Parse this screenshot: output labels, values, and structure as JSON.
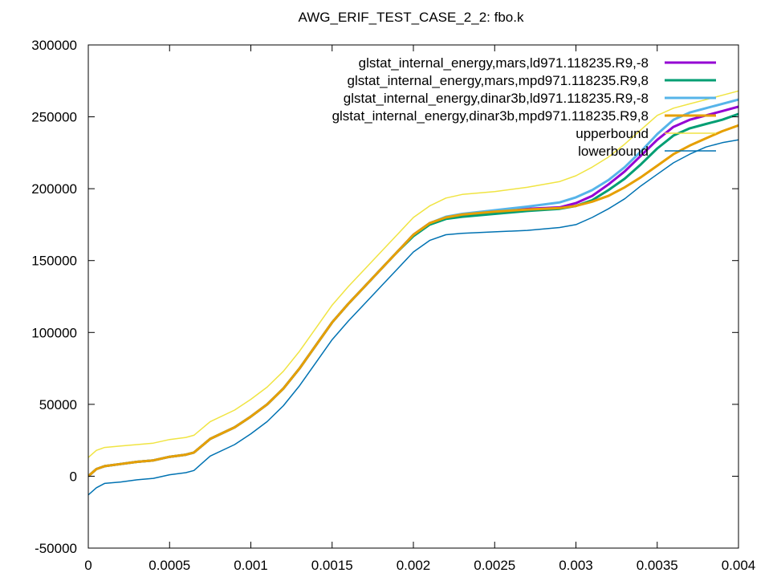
{
  "chart_data": {
    "type": "line",
    "title": "AWG_ERIF_TEST_CASE_2_2: fbo.k",
    "xlabel": "",
    "ylabel": "",
    "xlim": [
      0,
      0.004
    ],
    "ylim": [
      -50000,
      300000
    ],
    "xticks": [
      {
        "value": 0,
        "label": "0"
      },
      {
        "value": 0.0005,
        "label": "0.0005"
      },
      {
        "value": 0.001,
        "label": "0.001"
      },
      {
        "value": 0.0015,
        "label": "0.0015"
      },
      {
        "value": 0.002,
        "label": "0.002"
      },
      {
        "value": 0.0025,
        "label": "0.0025"
      },
      {
        "value": 0.003,
        "label": "0.003"
      },
      {
        "value": 0.0035,
        "label": "0.0035"
      },
      {
        "value": 0.004,
        "label": "0.004"
      }
    ],
    "yticks": [
      {
        "value": -50000,
        "label": "-50000"
      },
      {
        "value": 0,
        "label": "0"
      },
      {
        "value": 50000,
        "label": "50000"
      },
      {
        "value": 100000,
        "label": "100000"
      },
      {
        "value": 150000,
        "label": "150000"
      },
      {
        "value": 200000,
        "label": "200000"
      },
      {
        "value": 250000,
        "label": "250000"
      },
      {
        "value": 300000,
        "label": "300000"
      }
    ],
    "grid": false,
    "legend_position": "top-right",
    "series": [
      {
        "name": "glstat_internal_energy,mars,ld971.118235.R9,-8",
        "color": "#9400d3",
        "width": 3,
        "x": [
          0,
          5e-05,
          0.0001,
          0.0002,
          0.0003,
          0.0004,
          0.0005,
          0.0006,
          0.00065,
          0.00075,
          0.0009,
          0.001,
          0.0011,
          0.0012,
          0.0013,
          0.0014,
          0.0015,
          0.0016,
          0.0017,
          0.0018,
          0.0019,
          0.002,
          0.0021,
          0.0022,
          0.0023,
          0.0025,
          0.0027,
          0.0029,
          0.003,
          0.0031,
          0.0032,
          0.0033,
          0.0034,
          0.0035,
          0.0036,
          0.0037,
          0.0038,
          0.0039,
          0.004
        ],
        "y": [
          0,
          5000,
          7000,
          8500,
          10000,
          11000,
          13500,
          15000,
          16500,
          26000,
          34000,
          41500,
          50000,
          61000,
          75000,
          91000,
          107000,
          120000,
          132000,
          144000,
          156000,
          168000,
          176000,
          180000,
          182000,
          184000,
          186000,
          187000,
          190000,
          195000,
          203000,
          212000,
          223000,
          234000,
          243000,
          248000,
          251000,
          254000,
          257000
        ]
      },
      {
        "name": "glstat_internal_energy,mars,mpd971.118235.R9,8",
        "color": "#009e73",
        "width": 3,
        "x": [
          0,
          5e-05,
          0.0001,
          0.0002,
          0.0003,
          0.0004,
          0.0005,
          0.0006,
          0.00065,
          0.00075,
          0.0009,
          0.001,
          0.0011,
          0.0012,
          0.0013,
          0.0014,
          0.0015,
          0.0016,
          0.0017,
          0.0018,
          0.0019,
          0.002,
          0.0021,
          0.0022,
          0.0023,
          0.0025,
          0.0027,
          0.0029,
          0.003,
          0.0031,
          0.0032,
          0.0033,
          0.0034,
          0.0035,
          0.0036,
          0.0037,
          0.0038,
          0.0039,
          0.004
        ],
        "y": [
          0,
          5000,
          7000,
          8500,
          10000,
          11000,
          13500,
          15000,
          16500,
          26000,
          34000,
          41500,
          50000,
          61000,
          75000,
          91000,
          107000,
          120000,
          132000,
          144000,
          156000,
          167000,
          175000,
          179000,
          180500,
          182500,
          184500,
          186000,
          188000,
          192000,
          199000,
          207000,
          217000,
          228000,
          237000,
          242000,
          245000,
          248000,
          252000
        ]
      },
      {
        "name": "glstat_internal_energy,dinar3b,ld971.118235.R9,-8",
        "color": "#56b4e9",
        "width": 3,
        "x": [
          0,
          5e-05,
          0.0001,
          0.0002,
          0.0003,
          0.0004,
          0.0005,
          0.0006,
          0.00065,
          0.00075,
          0.0009,
          0.001,
          0.0011,
          0.0012,
          0.0013,
          0.0014,
          0.0015,
          0.0016,
          0.0017,
          0.0018,
          0.0019,
          0.002,
          0.0021,
          0.0022,
          0.0023,
          0.0025,
          0.0027,
          0.0029,
          0.003,
          0.0031,
          0.0032,
          0.0033,
          0.0034,
          0.0035,
          0.0036,
          0.0037,
          0.0038,
          0.0039,
          0.004
        ],
        "y": [
          0,
          5000,
          7000,
          8500,
          10000,
          11000,
          13500,
          15000,
          16500,
          26000,
          34000,
          41500,
          50000,
          61000,
          75000,
          91000,
          107000,
          120000,
          132000,
          144000,
          156000,
          168000,
          176000,
          180500,
          182500,
          185000,
          187500,
          190500,
          194000,
          199000,
          206000,
          215000,
          226000,
          238000,
          248000,
          253000,
          256000,
          259000,
          262000
        ]
      },
      {
        "name": "glstat_internal_energy,dinar3b,mpd971.118235.R9,8",
        "color": "#e69f00",
        "width": 3,
        "x": [
          0,
          5e-05,
          0.0001,
          0.0002,
          0.0003,
          0.0004,
          0.0005,
          0.0006,
          0.00065,
          0.00075,
          0.0009,
          0.001,
          0.0011,
          0.0012,
          0.0013,
          0.0014,
          0.0015,
          0.0016,
          0.0017,
          0.0018,
          0.0019,
          0.002,
          0.0021,
          0.0022,
          0.0023,
          0.0025,
          0.0027,
          0.0029,
          0.003,
          0.0031,
          0.0032,
          0.0033,
          0.0034,
          0.0035,
          0.0036,
          0.0037,
          0.0038,
          0.0039,
          0.004
        ],
        "y": [
          0,
          5000,
          7000,
          8500,
          10000,
          11000,
          13500,
          15000,
          16500,
          26000,
          34000,
          41500,
          50000,
          61000,
          75000,
          91000,
          107000,
          120000,
          132000,
          144000,
          156000,
          168000,
          176000,
          180000,
          182000,
          184000,
          185500,
          186500,
          188000,
          191000,
          195000,
          201000,
          208000,
          216000,
          224000,
          230000,
          235000,
          240000,
          244000
        ]
      },
      {
        "name": "upperbound",
        "color": "#f0e442",
        "width": 1.5,
        "x": [
          0,
          5e-05,
          0.0001,
          0.0002,
          0.0003,
          0.0004,
          0.0005,
          0.0006,
          0.00065,
          0.00075,
          0.0009,
          0.001,
          0.0011,
          0.0012,
          0.0013,
          0.0014,
          0.0015,
          0.0016,
          0.0017,
          0.0018,
          0.0019,
          0.002,
          0.0021,
          0.0022,
          0.0023,
          0.0025,
          0.0027,
          0.0029,
          0.003,
          0.0031,
          0.0032,
          0.0033,
          0.0034,
          0.0035,
          0.0036,
          0.0037,
          0.0038,
          0.0039,
          0.004
        ],
        "y": [
          13000,
          18000,
          20000,
          21000,
          22000,
          23000,
          25500,
          27000,
          28500,
          38000,
          46000,
          53500,
          62000,
          73000,
          87000,
          103000,
          119000,
          132000,
          144000,
          156000,
          168000,
          180000,
          188000,
          193500,
          196000,
          198000,
          201000,
          205000,
          209000,
          215000,
          222000,
          231000,
          241000,
          251000,
          256000,
          259000,
          262000,
          265000,
          268000
        ]
      },
      {
        "name": "lowerbound",
        "color": "#0072b2",
        "width": 1.5,
        "x": [
          0,
          5e-05,
          0.0001,
          0.0002,
          0.0003,
          0.0004,
          0.0005,
          0.0006,
          0.00065,
          0.00075,
          0.0009,
          0.001,
          0.0011,
          0.0012,
          0.0013,
          0.0014,
          0.0015,
          0.0016,
          0.0017,
          0.0018,
          0.0019,
          0.002,
          0.0021,
          0.0022,
          0.0023,
          0.0025,
          0.0027,
          0.0029,
          0.003,
          0.0031,
          0.0032,
          0.0033,
          0.0034,
          0.0035,
          0.0036,
          0.0037,
          0.0038,
          0.0039,
          0.004
        ],
        "y": [
          -13000,
          -8000,
          -5000,
          -4000,
          -2500,
          -1500,
          1000,
          2500,
          4000,
          14000,
          22000,
          29500,
          38000,
          49000,
          63000,
          79000,
          95000,
          108000,
          120000,
          132000,
          144000,
          156000,
          164000,
          168000,
          169000,
          170000,
          171000,
          173000,
          175000,
          180000,
          186000,
          193000,
          202000,
          210000,
          218000,
          224000,
          229000,
          232000,
          234000
        ]
      }
    ]
  }
}
